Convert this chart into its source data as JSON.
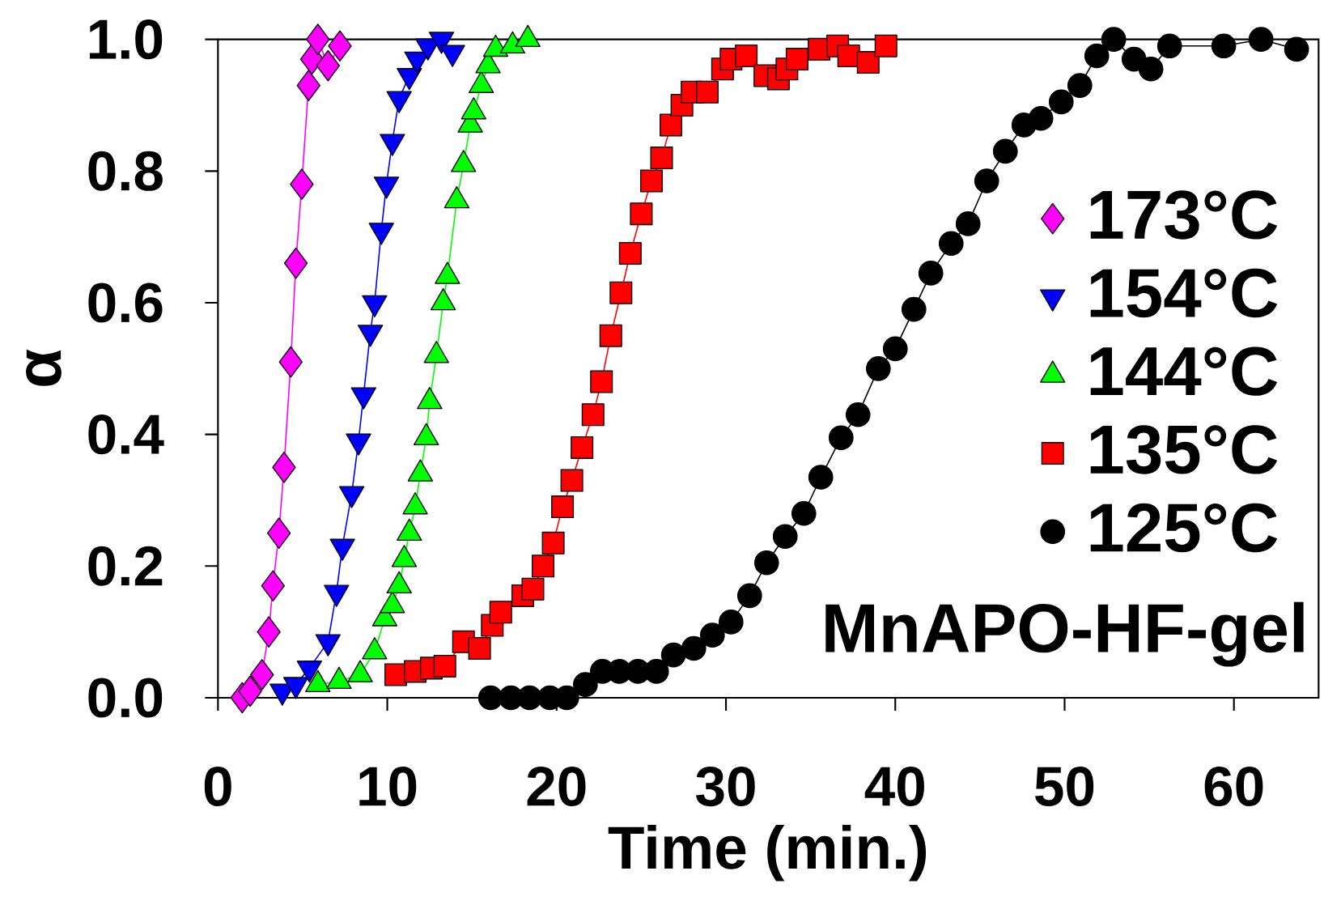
{
  "chart_data": {
    "type": "line",
    "xlabel": "Time (min.)",
    "ylabel": "α",
    "xlim": [
      0,
      65
    ],
    "ylim": [
      0,
      1
    ],
    "xticks": [
      0,
      10,
      20,
      30,
      40,
      50,
      60
    ],
    "yticks": [
      {
        "value": 0,
        "label": "0.0"
      },
      {
        "value": 0.2,
        "label": "0.2"
      },
      {
        "value": 0.4,
        "label": "0.4"
      },
      {
        "value": 0.6,
        "label": "0.6"
      },
      {
        "value": 0.8,
        "label": "0.8"
      },
      {
        "value": 1,
        "label": "1.0"
      }
    ],
    "grid": false,
    "legend": "right",
    "line_style": "solid",
    "annotations": [
      "MnAPO-HF-gel"
    ],
    "series": [
      {
        "name": "173°C",
        "color": "#ff00ff",
        "marker": "diamond",
        "x": [
          1.43,
          1.9,
          2.6,
          3.0,
          3.25,
          3.6,
          3.9,
          4.3,
          4.6,
          4.95,
          5.35,
          5.55,
          5.9,
          6.5,
          7.2
        ],
        "values": [
          0.0,
          0.01,
          0.035,
          0.1,
          0.17,
          0.25,
          0.35,
          0.51,
          0.66,
          0.78,
          0.93,
          0.97,
          1.0,
          0.96,
          0.99
        ]
      },
      {
        "name": "154°C",
        "color": "#0000ff",
        "marker": "triangle-down",
        "x": [
          3.8,
          4.6,
          5.4,
          6.5,
          7.0,
          7.35,
          7.9,
          8.3,
          8.6,
          9.0,
          9.25,
          9.65,
          9.95,
          10.3,
          10.7,
          11.3,
          11.75,
          12.4,
          13.2,
          13.85
        ],
        "values": [
          0.01,
          0.02,
          0.045,
          0.085,
          0.16,
          0.23,
          0.31,
          0.39,
          0.46,
          0.555,
          0.6,
          0.71,
          0.78,
          0.845,
          0.91,
          0.945,
          0.97,
          0.99,
          1.0,
          0.98
        ]
      },
      {
        "name": "144°C",
        "color": "#00ff00",
        "marker": "triangle",
        "x": [
          5.9,
          7.15,
          8.4,
          9.25,
          9.85,
          10.3,
          10.7,
          11.0,
          11.3,
          11.65,
          11.95,
          12.3,
          12.5,
          12.9,
          13.3,
          13.55,
          14.1,
          14.5,
          14.9,
          15.1,
          15.55,
          15.95,
          16.4,
          17.4,
          18.3
        ],
        "values": [
          0.02,
          0.025,
          0.035,
          0.07,
          0.12,
          0.14,
          0.17,
          0.21,
          0.25,
          0.29,
          0.34,
          0.395,
          0.45,
          0.52,
          0.6,
          0.64,
          0.755,
          0.81,
          0.87,
          0.89,
          0.93,
          0.96,
          0.985,
          0.99,
          1.0
        ]
      },
      {
        "name": "135°C",
        "color": "#ff0000",
        "marker": "square",
        "x": [
          10.5,
          11.65,
          12.6,
          13.4,
          14.5,
          15.45,
          16.2,
          16.7,
          18.0,
          18.6,
          19.2,
          19.8,
          20.35,
          20.9,
          21.5,
          22.15,
          22.65,
          23.2,
          23.8,
          24.35,
          25.0,
          25.6,
          26.2,
          26.75,
          27.4,
          28.0,
          28.9,
          29.8,
          30.3,
          31.2,
          32.3,
          33.1,
          33.6,
          34.2,
          35.5,
          36.6,
          37.25,
          38.4,
          39.45
        ],
        "values": [
          0.035,
          0.04,
          0.045,
          0.048,
          0.085,
          0.075,
          0.11,
          0.13,
          0.155,
          0.165,
          0.2,
          0.235,
          0.29,
          0.33,
          0.38,
          0.43,
          0.48,
          0.55,
          0.615,
          0.675,
          0.735,
          0.785,
          0.82,
          0.87,
          0.9,
          0.92,
          0.92,
          0.955,
          0.97,
          0.975,
          0.945,
          0.94,
          0.955,
          0.97,
          0.985,
          0.99,
          0.975,
          0.965,
          0.99
        ]
      },
      {
        "name": "125°C",
        "color": "#000000",
        "marker": "circle",
        "x": [
          16.1,
          17.3,
          18.4,
          19.6,
          20.6,
          21.7,
          22.7,
          23.7,
          24.8,
          25.9,
          26.9,
          28.1,
          29.2,
          30.3,
          31.4,
          32.4,
          33.5,
          34.6,
          35.6,
          36.8,
          37.8,
          39.0,
          40.0,
          41.1,
          42.1,
          43.3,
          44.3,
          45.4,
          46.5,
          47.6,
          48.6,
          49.8,
          50.9,
          51.9,
          52.9,
          54.1,
          55.1,
          56.2,
          59.4,
          61.6,
          63.7
        ],
        "values": [
          0.0,
          0.0,
          0.0,
          0.0,
          0.0,
          0.02,
          0.04,
          0.04,
          0.04,
          0.04,
          0.065,
          0.075,
          0.095,
          0.115,
          0.155,
          0.205,
          0.245,
          0.28,
          0.335,
          0.395,
          0.43,
          0.5,
          0.53,
          0.59,
          0.645,
          0.69,
          0.72,
          0.785,
          0.83,
          0.87,
          0.88,
          0.905,
          0.93,
          0.975,
          1.0,
          0.97,
          0.955,
          0.99,
          0.99,
          1.0,
          0.985
        ]
      }
    ]
  }
}
